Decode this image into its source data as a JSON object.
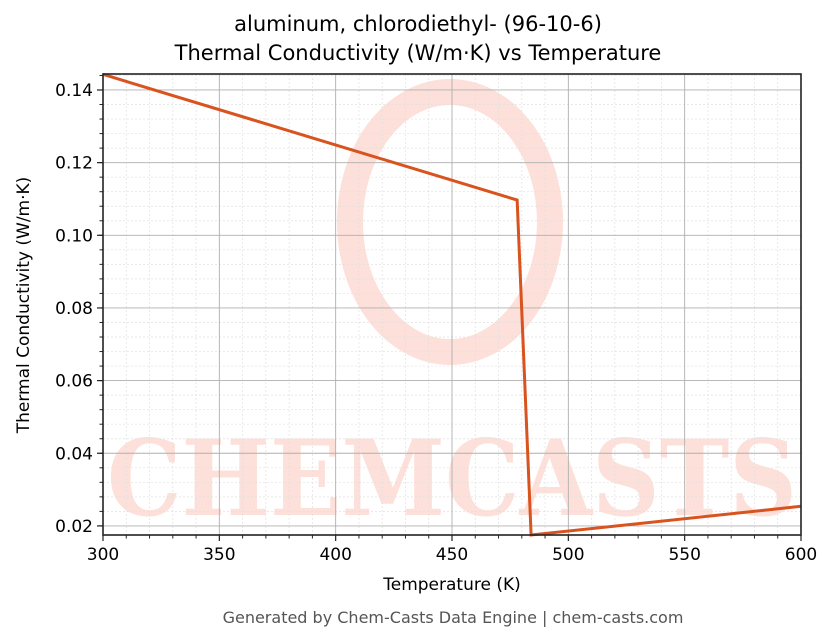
{
  "title_line1": "aluminum, chlorodiethyl- (96-10-6)",
  "title_line2": "Thermal Conductivity (W/m·K) vs Temperature",
  "footer": "Generated by Chem-Casts Data Engine | chem-casts.com",
  "watermark": "CHEMCASTS",
  "colors": {
    "line": "#d9531e",
    "watermark": "#fde0d9",
    "grid_major": "#b0b0b0",
    "grid_minor": "#e0e0e0"
  },
  "chart_data": {
    "type": "line",
    "title": "aluminum, chlorodiethyl- (96-10-6)\nThermal Conductivity (W/m·K) vs Temperature",
    "xlabel": "Temperature (K)",
    "ylabel": "Thermal Conductivity (W/m·K)",
    "xlim": [
      300,
      600
    ],
    "ylim": [
      0.0175,
      0.1444
    ],
    "xticks": [
      300,
      350,
      400,
      450,
      500,
      550,
      600
    ],
    "yticks": [
      0.02,
      0.04,
      0.06,
      0.08,
      0.1,
      0.12,
      0.14
    ],
    "ytick_labels": [
      "0.02",
      "0.04",
      "0.06",
      "0.08",
      "0.10",
      "0.12",
      "0.14"
    ],
    "grid": true,
    "legend": null,
    "series": [
      {
        "name": "Thermal Conductivity",
        "x": [
          300,
          478,
          484,
          600
        ],
        "y": [
          0.1443,
          0.1097,
          0.0175,
          0.0254
        ]
      }
    ]
  }
}
